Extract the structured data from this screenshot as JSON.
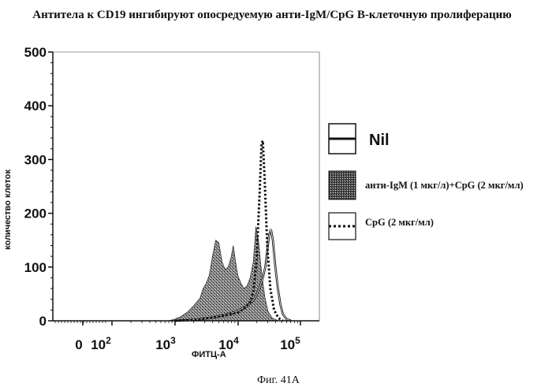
{
  "chart_data": {
    "type": "area",
    "title": "Антитела к CD19 ингибируют опосредуемую анти-IgM/CpG B-клеточную пролиферацию",
    "xlabel": "ФИТЦ-А",
    "ylabel": "количество клеток",
    "ylim": [
      0,
      500
    ],
    "yticks": [
      0,
      100,
      200,
      300,
      400,
      500
    ],
    "xticks": [
      {
        "label": "0",
        "exp": ""
      },
      {
        "label": "10",
        "exp": "2"
      },
      {
        "label": "10",
        "exp": "3"
      },
      {
        "label": "10",
        "exp": "4"
      },
      {
        "label": "10",
        "exp": "5"
      }
    ],
    "xscale": "log",
    "grid": false,
    "legend_position": "right",
    "series": [
      {
        "name": "Nil",
        "style": "solid",
        "points": [
          [
            3.0,
            0
          ],
          [
            3.2,
            1
          ],
          [
            3.4,
            3
          ],
          [
            3.6,
            6
          ],
          [
            3.8,
            11
          ],
          [
            4.0,
            18
          ],
          [
            4.15,
            28
          ],
          [
            4.25,
            38
          ],
          [
            4.3,
            48
          ],
          [
            4.35,
            62
          ],
          [
            4.4,
            80
          ],
          [
            4.44,
            100
          ],
          [
            4.47,
            130
          ],
          [
            4.5,
            160
          ],
          [
            4.53,
            170
          ],
          [
            4.56,
            150
          ],
          [
            4.6,
            100
          ],
          [
            4.64,
            60
          ],
          [
            4.68,
            30
          ],
          [
            4.72,
            12
          ],
          [
            4.78,
            3
          ],
          [
            4.85,
            0
          ]
        ]
      },
      {
        "name": "анти-IgM (1 мкг/л)+CpG (2 мкг/мл)",
        "style": "shaded",
        "points": [
          [
            2.9,
            0
          ],
          [
            3.0,
            3
          ],
          [
            3.1,
            8
          ],
          [
            3.2,
            16
          ],
          [
            3.3,
            28
          ],
          [
            3.4,
            42
          ],
          [
            3.45,
            60
          ],
          [
            3.5,
            70
          ],
          [
            3.55,
            85
          ],
          [
            3.6,
            120
          ],
          [
            3.65,
            150
          ],
          [
            3.7,
            145
          ],
          [
            3.75,
            110
          ],
          [
            3.8,
            95
          ],
          [
            3.85,
            100
          ],
          [
            3.9,
            120
          ],
          [
            3.93,
            140
          ],
          [
            3.96,
            115
          ],
          [
            4.0,
            85
          ],
          [
            4.05,
            70
          ],
          [
            4.1,
            60
          ],
          [
            4.15,
            65
          ],
          [
            4.2,
            80
          ],
          [
            4.25,
            110
          ],
          [
            4.29,
            175
          ],
          [
            4.33,
            150
          ],
          [
            4.38,
            90
          ],
          [
            4.43,
            45
          ],
          [
            4.48,
            18
          ],
          [
            4.55,
            5
          ],
          [
            4.65,
            0
          ]
        ]
      },
      {
        "name": "CpG (2 мкг/мл)",
        "style": "dotted",
        "points": [
          [
            3.0,
            0
          ],
          [
            3.2,
            1
          ],
          [
            3.4,
            3
          ],
          [
            3.6,
            6
          ],
          [
            3.8,
            10
          ],
          [
            4.0,
            15
          ],
          [
            4.1,
            22
          ],
          [
            4.2,
            35
          ],
          [
            4.25,
            55
          ],
          [
            4.3,
            110
          ],
          [
            4.35,
            240
          ],
          [
            4.38,
            330
          ],
          [
            4.4,
            335
          ],
          [
            4.43,
            260
          ],
          [
            4.47,
            140
          ],
          [
            4.52,
            60
          ],
          [
            4.58,
            20
          ],
          [
            4.65,
            5
          ],
          [
            4.72,
            0
          ]
        ]
      }
    ]
  },
  "caption": "Фиг. 41А"
}
